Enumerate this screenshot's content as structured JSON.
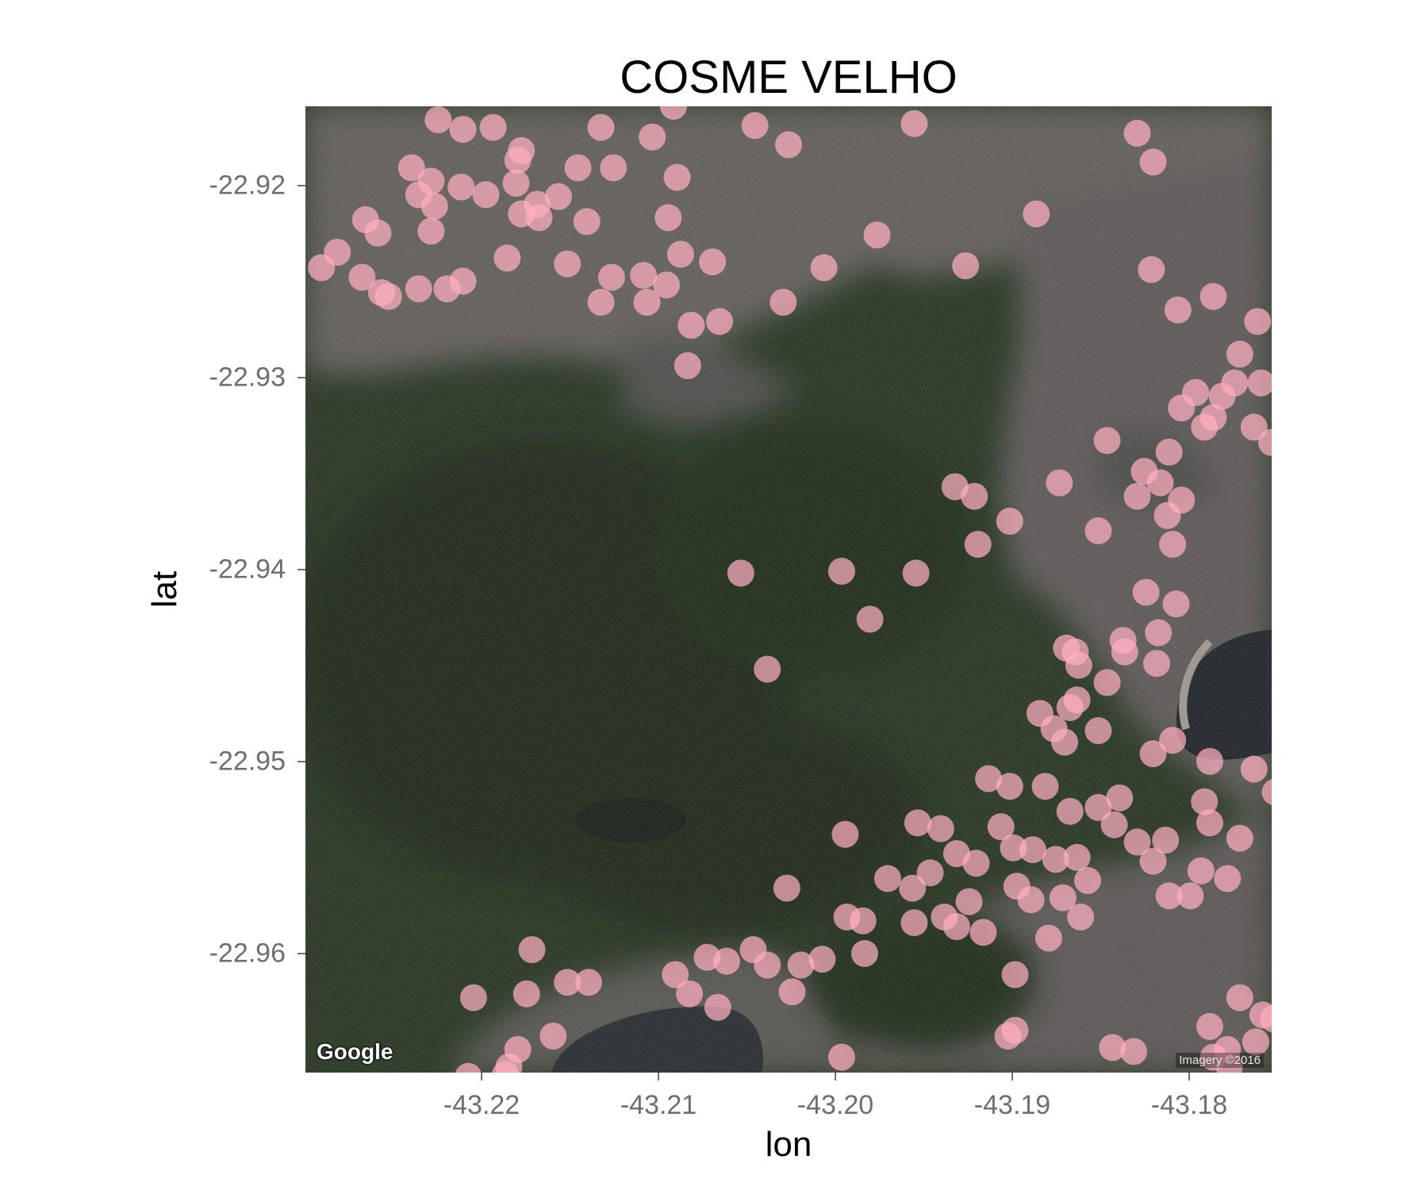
{
  "chart_data": {
    "type": "scatter",
    "title": "COSME VELHO",
    "xlabel": "lon",
    "ylabel": "lat",
    "xlim": [
      -43.2298,
      -43.1752
    ],
    "ylim": [
      -22.9659,
      -22.9156
    ],
    "x_ticks": [
      "-43.22",
      "-43.21",
      "-43.20",
      "-43.19",
      "-43.18"
    ],
    "x_tick_values": [
      -43.22,
      -43.21,
      -43.2,
      -43.19,
      -43.18
    ],
    "y_ticks": [
      "-22.92",
      "-22.93",
      "-22.94",
      "-22.95",
      "-22.96"
    ],
    "y_tick_values": [
      -22.92,
      -22.93,
      -22.94,
      -22.95,
      -22.96
    ],
    "point_color": "#ffaec0",
    "background": "satellite imagery",
    "grid": false,
    "legend": "none",
    "points": [
      [
        -43.2223,
        -22.9163
      ],
      [
        -43.2209,
        -22.9168
      ],
      [
        -43.2192,
        -22.9167
      ],
      [
        -43.2176,
        -22.9179
      ],
      [
        -43.2178,
        -22.9184
      ],
      [
        -43.2131,
        -22.9167
      ],
      [
        -43.2102,
        -22.9172
      ],
      [
        -43.209,
        -22.9156
      ],
      [
        -43.2044,
        -22.9166
      ],
      [
        -43.2025,
        -22.9176
      ],
      [
        -43.1954,
        -22.9165
      ],
      [
        -43.1828,
        -22.917
      ],
      [
        -43.2225,
        -22.9208
      ],
      [
        -43.2234,
        -22.9202
      ],
      [
        -43.2264,
        -22.9215
      ],
      [
        -43.2257,
        -22.9222
      ],
      [
        -43.2227,
        -22.9221
      ],
      [
        -43.2238,
        -22.9188
      ],
      [
        -43.2227,
        -22.9195
      ],
      [
        -43.221,
        -22.9198
      ],
      [
        -43.2196,
        -22.9202
      ],
      [
        -43.2179,
        -22.9196
      ],
      [
        -43.2176,
        -22.9212
      ],
      [
        -43.2184,
        -22.9235
      ],
      [
        -43.2167,
        -22.9207
      ],
      [
        -43.2155,
        -22.9203
      ],
      [
        -43.2139,
        -22.9216
      ],
      [
        -43.2166,
        -22.9214
      ],
      [
        -43.2144,
        -22.9188
      ],
      [
        -43.2124,
        -22.9188
      ],
      [
        -43.2088,
        -22.9193
      ],
      [
        -43.2093,
        -22.9214
      ],
      [
        -43.228,
        -22.9232
      ],
      [
        -43.2289,
        -22.924
      ],
      [
        -43.2266,
        -22.9245
      ],
      [
        -43.2255,
        -22.9253
      ],
      [
        -43.2234,
        -22.9251
      ],
      [
        -43.2251,
        -22.9255
      ],
      [
        -43.2218,
        -22.9251
      ],
      [
        -43.2209,
        -22.9247
      ],
      [
        -43.215,
        -22.9238
      ],
      [
        -43.2125,
        -22.9245
      ],
      [
        -43.2107,
        -22.9244
      ],
      [
        -43.2094,
        -22.9249
      ],
      [
        -43.2105,
        -22.9258
      ],
      [
        -43.2131,
        -22.9258
      ],
      [
        -43.2086,
        -22.9233
      ],
      [
        -43.2064,
        -22.9268
      ],
      [
        -43.2028,
        -22.9258
      ],
      [
        -43.208,
        -22.927
      ],
      [
        -43.2082,
        -22.9291
      ],
      [
        -43.2068,
        -22.9237
      ],
      [
        -43.2005,
        -22.924
      ],
      [
        -43.1975,
        -22.9223
      ],
      [
        -43.1925,
        -22.9239
      ],
      [
        -43.1885,
        -22.9212
      ],
      [
        -43.1819,
        -22.9185
      ],
      [
        -43.182,
        -22.9241
      ],
      [
        -43.1805,
        -22.9262
      ],
      [
        -43.1785,
        -22.9255
      ],
      [
        -43.176,
        -22.9268
      ],
      [
        -43.177,
        -22.9285
      ],
      [
        -43.1773,
        -22.93
      ],
      [
        -43.1758,
        -22.93
      ],
      [
        -43.1762,
        -22.9323
      ],
      [
        -43.178,
        -22.9307
      ],
      [
        -43.179,
        -22.9323
      ],
      [
        -43.1803,
        -22.9313
      ],
      [
        -43.181,
        -22.9336
      ],
      [
        -43.1824,
        -22.9346
      ],
      [
        -43.1845,
        -22.933
      ],
      [
        -43.1815,
        -22.9352
      ],
      [
        -43.1828,
        -22.9359
      ],
      [
        -43.1811,
        -22.9369
      ],
      [
        -43.1785,
        -22.9318
      ],
      [
        -43.1795,
        -22.9305
      ],
      [
        -43.1752,
        -22.9331
      ],
      [
        -43.19,
        -22.9372
      ],
      [
        -43.1872,
        -22.9352
      ],
      [
        -43.192,
        -22.9359
      ],
      [
        -43.1931,
        -22.9354
      ],
      [
        -43.1995,
        -22.9398
      ],
      [
        -43.1979,
        -22.9423
      ],
      [
        -43.1953,
        -22.9399
      ],
      [
        -43.185,
        -22.9377
      ],
      [
        -43.1918,
        -22.9384
      ],
      [
        -43.1823,
        -22.9409
      ],
      [
        -43.1806,
        -22.9415
      ],
      [
        -43.1816,
        -22.943
      ],
      [
        -43.1835,
        -22.944
      ],
      [
        -43.1868,
        -22.9438
      ],
      [
        -43.1861,
        -22.9447
      ],
      [
        -43.1862,
        -22.9465
      ],
      [
        -43.1875,
        -22.948
      ],
      [
        -43.1869,
        -22.9487
      ],
      [
        -43.185,
        -22.9481
      ],
      [
        -43.1866,
        -22.9469
      ],
      [
        -43.1883,
        -22.9472
      ],
      [
        -43.1836,
        -22.9434
      ],
      [
        -43.1863,
        -22.944
      ],
      [
        -43.1808,
        -22.9384
      ],
      [
        -43.1845,
        -22.9456
      ],
      [
        -43.1803,
        -22.9361
      ],
      [
        -43.1817,
        -22.9446
      ],
      [
        -43.1762,
        -22.9501
      ],
      [
        -43.175,
        -22.9513
      ],
      [
        -43.1787,
        -22.9497
      ],
      [
        -43.2052,
        -22.9399
      ],
      [
        -43.2037,
        -22.9449
      ],
      [
        -43.2026,
        -22.9563
      ],
      [
        -43.2089,
        -22.9608
      ],
      [
        -43.2065,
        -22.9625
      ],
      [
        -43.2071,
        -22.9599
      ],
      [
        -43.206,
        -22.9601
      ],
      [
        -43.2045,
        -22.9595
      ],
      [
        -43.2037,
        -22.9603
      ],
      [
        -43.2018,
        -22.9603
      ],
      [
        -43.2006,
        -22.96
      ],
      [
        -43.2023,
        -22.9617
      ],
      [
        -43.2081,
        -22.9618
      ],
      [
        -43.215,
        -22.9612
      ],
      [
        -43.2138,
        -22.9612
      ],
      [
        -43.2173,
        -22.9618
      ],
      [
        -43.2158,
        -22.964
      ],
      [
        -43.2183,
        -22.9656
      ],
      [
        -43.2185,
        -22.966
      ],
      [
        -43.2178,
        -22.9647
      ],
      [
        -43.2206,
        -22.9661
      ],
      [
        -43.217,
        -22.9595
      ],
      [
        -43.2203,
        -22.962
      ],
      [
        -43.1993,
        -22.9535
      ],
      [
        -43.1969,
        -22.9558
      ],
      [
        -43.1955,
        -22.9563
      ],
      [
        -43.1945,
        -22.9555
      ],
      [
        -43.1939,
        -22.9532
      ],
      [
        -43.1952,
        -22.9529
      ],
      [
        -43.193,
        -22.9545
      ],
      [
        -43.1919,
        -22.955
      ],
      [
        -43.1905,
        -22.9531
      ],
      [
        -43.1898,
        -22.9542
      ],
      [
        -43.1887,
        -22.9543
      ],
      [
        -43.1874,
        -22.9548
      ],
      [
        -43.1862,
        -22.9547
      ],
      [
        -43.1856,
        -22.9559
      ],
      [
        -43.1841,
        -22.953
      ],
      [
        -43.1828,
        -22.9539
      ],
      [
        -43.1819,
        -22.9549
      ],
      [
        -43.181,
        -22.9567
      ],
      [
        -43.1798,
        -22.9567
      ],
      [
        -43.1792,
        -22.9554
      ],
      [
        -43.1777,
        -22.9558
      ],
      [
        -43.186,
        -22.9578
      ],
      [
        -43.187,
        -22.9568
      ],
      [
        -43.1888,
        -22.9569
      ],
      [
        -43.1896,
        -22.9562
      ],
      [
        -43.1923,
        -22.957
      ],
      [
        -43.1937,
        -22.9578
      ],
      [
        -43.1954,
        -22.9581
      ],
      [
        -43.1983,
        -22.958
      ],
      [
        -43.1992,
        -22.9578
      ],
      [
        -43.1982,
        -22.9597
      ],
      [
        -43.193,
        -22.9583
      ],
      [
        -43.1915,
        -22.9586
      ],
      [
        -43.1897,
        -22.9608
      ],
      [
        -43.1878,
        -22.9589
      ],
      [
        -43.1897,
        -22.9637
      ],
      [
        -43.1901,
        -22.964
      ],
      [
        -43.1995,
        -22.9651
      ],
      [
        -43.1912,
        -22.9506
      ],
      [
        -43.19,
        -22.951
      ],
      [
        -43.188,
        -22.951
      ],
      [
        -43.1866,
        -22.9523
      ],
      [
        -43.185,
        -22.9521
      ],
      [
        -43.1838,
        -22.9516
      ],
      [
        -43.1819,
        -22.9493
      ],
      [
        -43.1808,
        -22.9486
      ],
      [
        -43.179,
        -22.9518
      ],
      [
        -43.1787,
        -22.9529
      ],
      [
        -43.1812,
        -22.9538
      ],
      [
        -43.177,
        -22.9537
      ],
      [
        -43.1777,
        -22.9647
      ],
      [
        -43.1761,
        -22.9643
      ],
      [
        -43.1757,
        -22.9629
      ],
      [
        -43.177,
        -22.962
      ],
      [
        -43.1787,
        -22.9635
      ],
      [
        -43.1751,
        -22.9631
      ],
      [
        -43.1842,
        -22.9646
      ],
      [
        -43.183,
        -22.9648
      ],
      [
        -43.1776,
        -22.9656
      ],
      [
        -43.1785,
        -22.9651
      ]
    ]
  },
  "map": {
    "attribution_logo": "Google",
    "imagery_credit": "Imagery ©2016"
  }
}
